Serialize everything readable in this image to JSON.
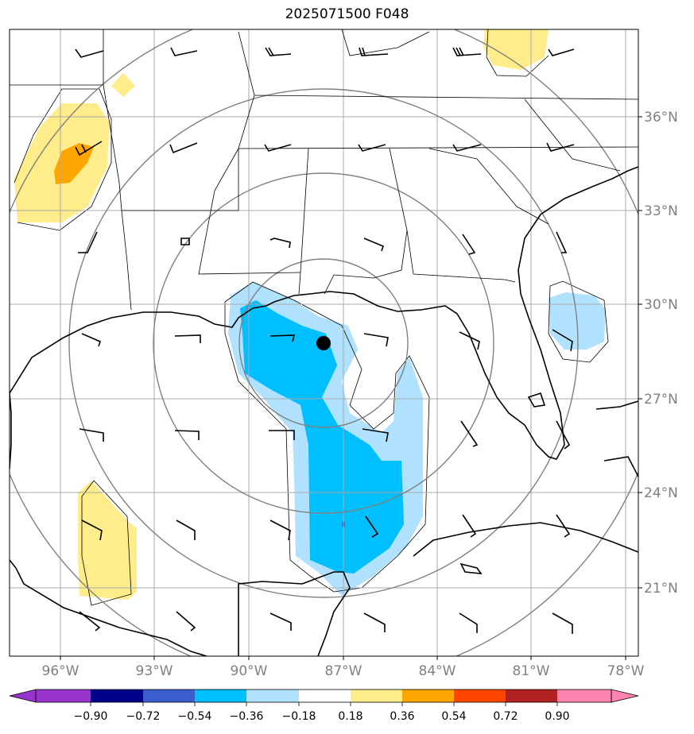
{
  "title": "2025071500 F048",
  "lon_labels": [
    "96°W",
    "93°W",
    "90°W",
    "87°W",
    "84°W",
    "81°W",
    "78°W"
  ],
  "lat_labels": [
    "36°N",
    "33°N",
    "30°N",
    "27°N",
    "24°N",
    "21°N"
  ],
  "colorbar": {
    "ticks": [
      "−0.90",
      "−0.72",
      "−0.54",
      "−0.36",
      "−0.18",
      "0.18",
      "0.36",
      "0.54",
      "0.72",
      "0.90"
    ],
    "colors": [
      "#9932cc",
      "#00008b",
      "#3a5fcd",
      "#00bfff",
      "#b0e2ff",
      "#ffffff",
      "#ffec8b",
      "#ffa500",
      "#ff4500",
      "#b22222",
      "#ff83b0"
    ]
  },
  "marker": "storm-center-dot"
}
